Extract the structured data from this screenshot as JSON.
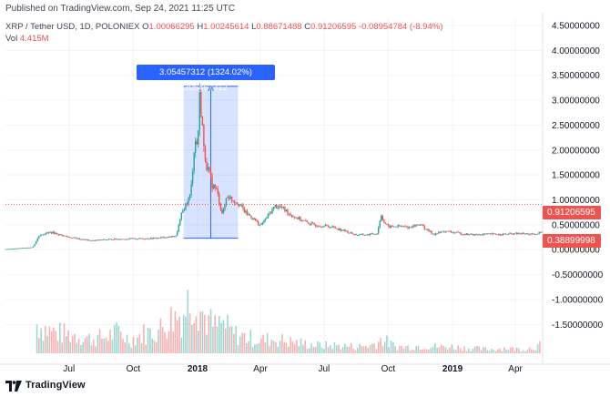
{
  "published_text": "Published on TradingView.com, Sep 24, 2021 11:25 UTC",
  "legend": {
    "symbol": "XRP / Tether USD, 1D, POLONIEX",
    "open_label": "O",
    "open_value": "1.00066295",
    "high_label": "H",
    "high_value": "1.00245614",
    "low_label": "L",
    "low_value": "0.88671488",
    "close_label": "C",
    "close_value": "0.91206595",
    "change": "-0.08954784 (-8.94%)"
  },
  "volume": {
    "label": "Vol",
    "value": "4.415M"
  },
  "measure_label": "3.05457312 (1324.02%) 305457312",
  "price_tags": {
    "current": "0.91206595",
    "sma": "0.38899998"
  },
  "footer": {
    "brand": "TradingView"
  },
  "colors": {
    "up": "#26a69a",
    "down": "#ef5350",
    "measure_fill": "#2962ff",
    "grid": "#f0f3fa"
  },
  "chart_data": {
    "type": "candlestick",
    "title": "",
    "xlabel": "",
    "ylabel": "",
    "ylim": [
      -1.75,
      4.5
    ],
    "y_ticks": [
      "4.50000000",
      "4.00000000",
      "3.50000000",
      "3.00000000",
      "2.50000000",
      "2.00000000",
      "1.50000000",
      "1.00000000",
      "0.50000000",
      "0.00000000",
      "-0.50000000",
      "-1.00000000",
      "-1.50000000"
    ],
    "y_tick_values": [
      4.5,
      4.0,
      3.5,
      3.0,
      2.5,
      2.0,
      1.5,
      1.0,
      0.5,
      0.0,
      -0.5,
      -1.0,
      -1.5
    ],
    "x_ticks": [
      "Jul",
      "Oct",
      "2018",
      "Apr",
      "Jul",
      "Oct",
      "2019",
      "Apr"
    ],
    "x_tick_dates": [
      "2017-07-01",
      "2017-10-01",
      "2018-01-01",
      "2018-04-01",
      "2018-07-01",
      "2018-10-01",
      "2019-01-01",
      "2019-04-01"
    ],
    "x_range": [
      "2017-04-01",
      "2019-05-10"
    ],
    "price_series": {
      "dates": [
        "2017-04-01",
        "2017-05-10",
        "2017-05-20",
        "2017-06-05",
        "2017-07-01",
        "2017-08-01",
        "2017-09-01",
        "2017-10-01",
        "2017-11-01",
        "2017-12-01",
        "2017-12-10",
        "2017-12-15",
        "2017-12-22",
        "2017-12-28",
        "2018-01-01",
        "2018-01-04",
        "2018-01-07",
        "2018-01-10",
        "2018-01-14",
        "2018-01-18",
        "2018-01-22",
        "2018-01-28",
        "2018-02-03",
        "2018-02-06",
        "2018-02-12",
        "2018-02-20",
        "2018-02-28",
        "2018-03-10",
        "2018-03-20",
        "2018-04-01",
        "2018-04-10",
        "2018-04-22",
        "2018-05-01",
        "2018-05-15",
        "2018-06-01",
        "2018-06-15",
        "2018-07-01",
        "2018-07-15",
        "2018-08-01",
        "2018-08-15",
        "2018-09-01",
        "2018-09-15",
        "2018-09-21",
        "2018-09-25",
        "2018-10-01",
        "2018-10-15",
        "2018-11-01",
        "2018-11-15",
        "2018-11-25",
        "2018-12-05",
        "2018-12-20",
        "2019-01-01",
        "2019-01-15",
        "2019-02-01",
        "2019-02-15",
        "2019-03-01",
        "2019-03-15",
        "2019-04-01",
        "2019-04-15",
        "2019-05-01",
        "2019-05-10"
      ],
      "values": [
        0.01,
        0.05,
        0.3,
        0.35,
        0.25,
        0.18,
        0.21,
        0.22,
        0.23,
        0.27,
        0.75,
        0.9,
        1.1,
        2.2,
        2.1,
        3.05,
        2.7,
        2.0,
        1.7,
        1.5,
        1.3,
        1.2,
        0.85,
        0.7,
        1.1,
        1.0,
        0.95,
        0.75,
        0.65,
        0.48,
        0.65,
        0.88,
        0.85,
        0.7,
        0.58,
        0.5,
        0.48,
        0.45,
        0.37,
        0.3,
        0.3,
        0.33,
        0.7,
        0.55,
        0.46,
        0.47,
        0.45,
        0.52,
        0.4,
        0.31,
        0.37,
        0.35,
        0.32,
        0.3,
        0.31,
        0.31,
        0.31,
        0.32,
        0.32,
        0.3,
        0.39
      ]
    },
    "volume_series": {
      "note_unit": "relative",
      "dates": [
        "2017-05-15",
        "2017-06-01",
        "2017-06-20",
        "2017-07-10",
        "2017-08-01",
        "2017-08-20",
        "2017-09-10",
        "2017-09-25",
        "2017-10-15",
        "2017-11-05",
        "2017-11-25",
        "2017-12-10",
        "2017-12-20",
        "2017-12-28",
        "2018-01-05",
        "2018-01-15",
        "2018-01-25",
        "2018-02-05",
        "2018-02-20",
        "2018-03-10",
        "2018-03-30",
        "2018-04-20",
        "2018-05-10",
        "2018-06-01",
        "2018-06-25",
        "2018-07-20",
        "2018-08-15",
        "2018-09-05",
        "2018-09-21",
        "2018-10-10",
        "2018-11-01",
        "2018-11-20",
        "2018-12-10",
        "2019-01-01",
        "2019-01-25",
        "2019-02-20",
        "2019-03-15",
        "2019-04-10",
        "2019-05-05"
      ],
      "values": [
        0.45,
        0.35,
        0.3,
        0.28,
        0.22,
        0.25,
        0.33,
        0.2,
        0.3,
        0.35,
        0.55,
        0.6,
        0.85,
        0.95,
        0.65,
        0.5,
        0.4,
        0.45,
        0.3,
        0.25,
        0.2,
        0.22,
        0.18,
        0.15,
        0.12,
        0.12,
        0.1,
        0.12,
        0.22,
        0.1,
        0.1,
        0.12,
        0.1,
        0.1,
        0.08,
        0.06,
        0.08,
        0.06,
        0.12
      ]
    },
    "current_price": 0.91206595,
    "moving_average_value": 0.38899998,
    "measure_range": {
      "start_date": "2017-12-12",
      "end_date": "2018-02-28",
      "low": 0.23,
      "high": 3.28,
      "change": 3.05457312,
      "change_percent": 1324.02
    },
    "grid": true,
    "legend_position": "top-left"
  }
}
